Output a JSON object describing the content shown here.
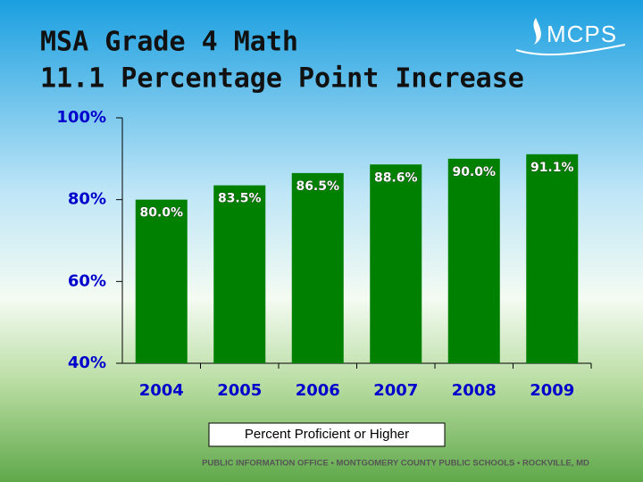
{
  "chart_data": {
    "type": "bar",
    "title": "MSA Grade 4 Math",
    "subtitle": "11.1 Percentage Point Increase",
    "categories": [
      "2004",
      "2005",
      "2006",
      "2007",
      "2008",
      "2009"
    ],
    "series": [
      {
        "name": "Percent Proficient or Higher",
        "color": "#008000",
        "values": [
          80.0,
          83.5,
          86.5,
          88.6,
          90.0,
          91.1
        ],
        "value_labels": [
          "80.0%",
          "83.5%",
          "86.5%",
          "88.6%",
          "90.0%",
          "91.1%"
        ]
      }
    ],
    "ylim": [
      40,
      100
    ],
    "yticks": [
      {
        "value": 40,
        "label": "40%"
      },
      {
        "value": 60,
        "label": "60%"
      },
      {
        "value": 80,
        "label": "80%"
      },
      {
        "value": 100,
        "label": "100%"
      }
    ],
    "grid": false
  },
  "logo": "MCPS",
  "footer": "PUBLIC INFORMATION OFFICE • MONTGOMERY COUNTY PUBLIC SCHOOLS • ROCKVILLE, MD"
}
